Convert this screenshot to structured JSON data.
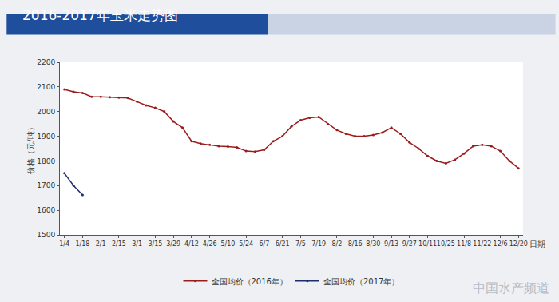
{
  "chart_data": {
    "type": "line",
    "title": "2016-2017年玉米走势图",
    "y_label": "价格（元/吨）",
    "x_label": "日期",
    "categories": [
      "1/4",
      null,
      "1/18",
      null,
      "2/1",
      null,
      "2/15",
      null,
      "3/1",
      null,
      "3/15",
      null,
      "3/29",
      null,
      "4/12",
      null,
      "4/26",
      null,
      "5/10",
      null,
      "5/24",
      null,
      "6/7",
      null,
      "6/21",
      null,
      "7/5",
      null,
      "7/19",
      null,
      "8/2",
      null,
      "8/16",
      null,
      "8/30",
      null,
      "9/13",
      null,
      "9/27",
      null,
      "10/11",
      null,
      "10/25",
      null,
      "11/8",
      null,
      "11/22",
      null,
      "12/6",
      null,
      "12/20"
    ],
    "series": [
      {
        "name": "全国均价（2016年）",
        "color": "#9b1c1c",
        "marker": "circle",
        "values": [
          2090,
          2080,
          2075,
          2060,
          2060,
          2058,
          2057,
          2055,
          2040,
          2025,
          2015,
          2000,
          1960,
          1935,
          1880,
          1870,
          1865,
          1860,
          1858,
          1855,
          1840,
          1838,
          1845,
          1880,
          1900,
          1940,
          1965,
          1975,
          1978,
          1950,
          1925,
          1910,
          1900,
          1900,
          1905,
          1915,
          1935,
          1910,
          1875,
          1850,
          1820,
          1800,
          1790,
          1805,
          1830,
          1860,
          1865,
          1860,
          1840,
          1800,
          1770
        ]
      },
      {
        "name": "全国均价（2017年）",
        "color": "#1f2d6b",
        "marker": "circle",
        "values": [
          1750,
          1700,
          1662,
          null,
          null,
          null,
          null,
          null,
          null,
          null,
          null,
          null,
          null,
          null,
          null,
          null,
          null,
          null,
          null,
          null,
          null,
          null,
          null,
          null,
          null,
          null,
          null,
          null,
          null,
          null,
          null,
          null,
          null,
          null,
          null,
          null,
          null,
          null,
          null,
          null,
          null,
          null,
          null,
          null,
          null,
          null,
          null,
          null,
          null,
          null,
          null
        ]
      }
    ],
    "ylim": [
      1500,
      2200
    ],
    "yticks": [
      1500,
      1600,
      1700,
      1800,
      1900,
      2000,
      2100,
      2200
    ],
    "grid": false,
    "legend": "bottom",
    "annotations": [
      {
        "text": "中国水产频道"
      }
    ]
  }
}
